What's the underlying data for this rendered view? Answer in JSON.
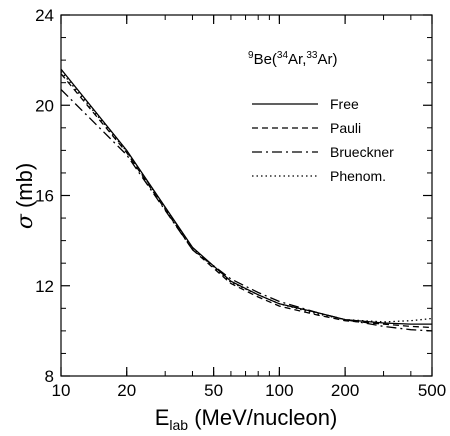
{
  "chart_data": {
    "type": "line",
    "annotation": {
      "target_mass": "9",
      "target": "Be(",
      "projectile_mass": "34",
      "projectile": "Ar,",
      "residue_mass": "33",
      "residue": "Ar)"
    },
    "ylabel": {
      "symbol": "σ",
      "unit": " (mb)"
    },
    "xlabel": {
      "main": "E",
      "sub": "lab",
      "unit": " (MeV/nucleon)"
    },
    "xscale": "log",
    "xlim": [
      10,
      500
    ],
    "ylim": [
      8,
      24
    ],
    "xticks": [
      {
        "value": 10,
        "label": "10"
      },
      {
        "value": 20,
        "label": "20"
      },
      {
        "value": 50,
        "label": "50"
      },
      {
        "value": 100,
        "label": "100"
      },
      {
        "value": 200,
        "label": "200"
      },
      {
        "value": 500,
        "label": "500"
      }
    ],
    "yticks": [
      {
        "value": 8,
        "label": "8"
      },
      {
        "value": 12,
        "label": "12"
      },
      {
        "value": 16,
        "label": "16"
      },
      {
        "value": 20,
        "label": "20"
      },
      {
        "value": 24,
        "label": "24"
      }
    ],
    "legend_position": "top-right",
    "series": [
      {
        "name": "Free",
        "dash": "solid",
        "x": [
          10,
          20,
          40,
          60,
          80,
          100,
          150,
          200,
          300,
          400,
          500
        ],
        "y": [
          21.6,
          18.0,
          13.7,
          12.2,
          11.6,
          11.2,
          10.8,
          10.5,
          10.35,
          10.3,
          10.3
        ]
      },
      {
        "name": "Pauli",
        "dash": "dashed",
        "x": [
          10,
          20,
          40,
          60,
          80,
          100,
          150,
          200,
          300,
          400,
          500
        ],
        "y": [
          21.4,
          17.9,
          13.6,
          12.1,
          11.5,
          11.1,
          10.7,
          10.45,
          10.3,
          10.2,
          10.15
        ]
      },
      {
        "name": "Brueckner",
        "dash": "dashdot",
        "x": [
          10,
          20,
          40,
          60,
          80,
          100,
          150,
          200,
          300,
          400,
          500
        ],
        "y": [
          20.7,
          17.8,
          13.6,
          12.3,
          11.7,
          11.3,
          10.8,
          10.5,
          10.2,
          10.05,
          10.0
        ]
      },
      {
        "name": "Phenom.",
        "dash": "dotted",
        "x": [
          10,
          20,
          40,
          60,
          80,
          100,
          150,
          200,
          300,
          400,
          500
        ],
        "y": [
          21.5,
          17.95,
          13.65,
          12.15,
          11.6,
          11.2,
          10.75,
          10.5,
          10.4,
          10.45,
          10.55
        ]
      }
    ]
  }
}
